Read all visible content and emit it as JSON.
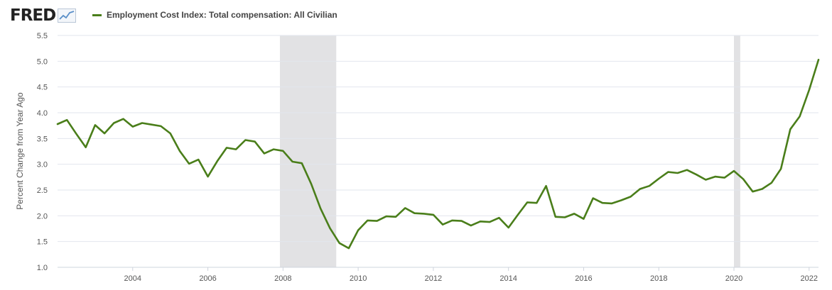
{
  "header": {
    "logo_text": "FRED",
    "logo_mark": "fred-trend-graph-icon",
    "legend_label": "Employment Cost Index: Total compensation: All Civilian"
  },
  "colors": {
    "series": "#4a7e1a",
    "recession": "#e2e2e4",
    "grid": "#e2e6ee",
    "axis_text": "#555555"
  },
  "chart_data": {
    "type": "line",
    "title": "",
    "xlabel": "",
    "ylabel": "Percent Change from Year Ago",
    "ylim": [
      1.0,
      5.5
    ],
    "xlim": [
      2002.0,
      2022.25
    ],
    "yticks": [
      "1.0",
      "1.5",
      "2.0",
      "2.5",
      "3.0",
      "3.5",
      "4.0",
      "4.5",
      "5.0",
      "5.5"
    ],
    "xticks": [
      "2004",
      "2006",
      "2008",
      "2010",
      "2012",
      "2014",
      "2016",
      "2018",
      "2020",
      "2022"
    ],
    "grid": true,
    "legend_position": "top-left",
    "recessions": [
      [
        2007.917,
        2009.417
      ],
      [
        2020.0,
        2020.167
      ]
    ],
    "series": [
      {
        "name": "Employment Cost Index: Total compensation: All Civilian",
        "x": [
          2002.0,
          2002.25,
          2002.5,
          2002.75,
          2003.0,
          2003.25,
          2003.5,
          2003.75,
          2004.0,
          2004.25,
          2004.5,
          2004.75,
          2005.0,
          2005.25,
          2005.5,
          2005.75,
          2006.0,
          2006.25,
          2006.5,
          2006.75,
          2007.0,
          2007.25,
          2007.5,
          2007.75,
          2008.0,
          2008.25,
          2008.5,
          2008.75,
          2009.0,
          2009.25,
          2009.5,
          2009.75,
          2010.0,
          2010.25,
          2010.5,
          2010.75,
          2011.0,
          2011.25,
          2011.5,
          2011.75,
          2012.0,
          2012.25,
          2012.5,
          2012.75,
          2013.0,
          2013.25,
          2013.5,
          2013.75,
          2014.0,
          2014.25,
          2014.5,
          2014.75,
          2015.0,
          2015.25,
          2015.5,
          2015.75,
          2016.0,
          2016.25,
          2016.5,
          2016.75,
          2017.0,
          2017.25,
          2017.5,
          2017.75,
          2018.0,
          2018.25,
          2018.5,
          2018.75,
          2019.0,
          2019.25,
          2019.5,
          2019.75,
          2020.0,
          2020.25,
          2020.5,
          2020.75,
          2021.0,
          2021.25,
          2021.5,
          2021.75,
          2022.0,
          2022.25
        ],
        "values": [
          3.78,
          3.86,
          3.59,
          3.33,
          3.76,
          3.6,
          3.8,
          3.88,
          3.73,
          3.8,
          3.77,
          3.74,
          3.6,
          3.26,
          3.01,
          3.09,
          2.76,
          3.06,
          3.32,
          3.29,
          3.47,
          3.44,
          3.21,
          3.29,
          3.26,
          3.05,
          3.02,
          2.62,
          2.14,
          1.76,
          1.47,
          1.37,
          1.72,
          1.91,
          1.9,
          1.99,
          1.98,
          2.15,
          2.05,
          2.04,
          2.02,
          1.83,
          1.91,
          1.9,
          1.81,
          1.89,
          1.88,
          1.96,
          1.77,
          2.02,
          2.26,
          2.25,
          2.58,
          1.98,
          1.97,
          2.04,
          1.94,
          2.34,
          2.25,
          2.24,
          2.3,
          2.37,
          2.52,
          2.58,
          2.72,
          2.85,
          2.83,
          2.89,
          2.8,
          2.7,
          2.76,
          2.74,
          2.87,
          2.71,
          2.47,
          2.52,
          2.64,
          2.91,
          3.68,
          3.93,
          4.44,
          5.03
        ]
      }
    ]
  }
}
